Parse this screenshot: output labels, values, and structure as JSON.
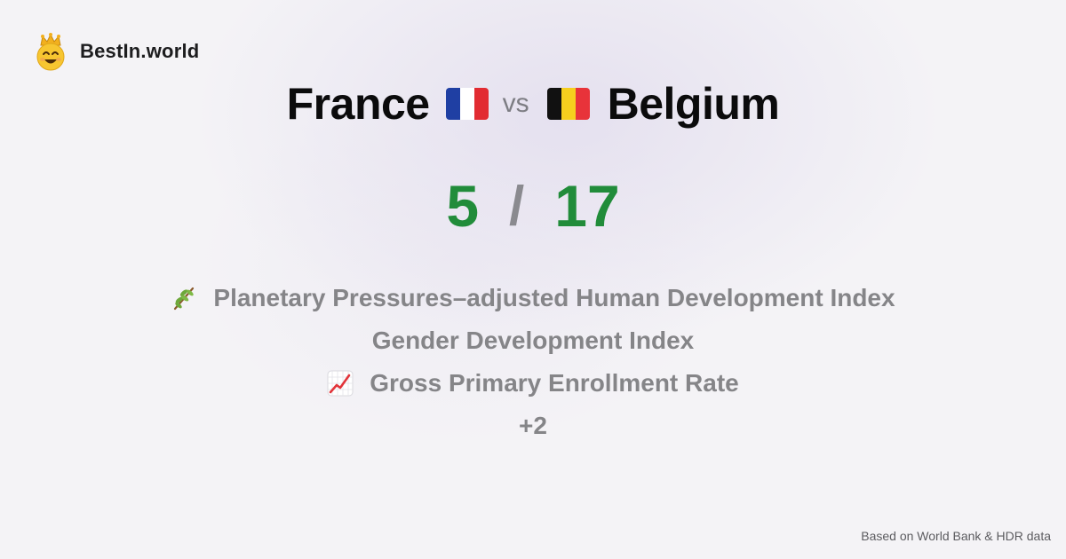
{
  "brand": {
    "name": "BestIn.world",
    "logo_icon": "crowned-smiley-icon"
  },
  "comparison": {
    "left_country": "France",
    "vs_label": "vs",
    "right_country": "Belgium",
    "left_flag": {
      "icon": "france-flag-icon",
      "colors": [
        "#1f3fa3",
        "#ffffff",
        "#e22b32"
      ]
    },
    "right_flag": {
      "icon": "belgium-flag-icon",
      "colors": [
        "#111111",
        "#f6cf1e",
        "#e8333a"
      ]
    }
  },
  "score": {
    "left": "5",
    "separator": "/",
    "right": "17",
    "color": "#218c3a"
  },
  "metrics": [
    {
      "icon": "olive-branch-icon",
      "label": "Planetary Pressures–adjusted Human Development Index"
    },
    {
      "icon": "",
      "label": "Gender Development Index"
    },
    {
      "icon": "chart-increasing-icon",
      "label": "Gross Primary Enrollment Rate"
    }
  ],
  "more_label": "+2",
  "footer": {
    "source_note": "Based on World Bank & HDR data"
  }
}
